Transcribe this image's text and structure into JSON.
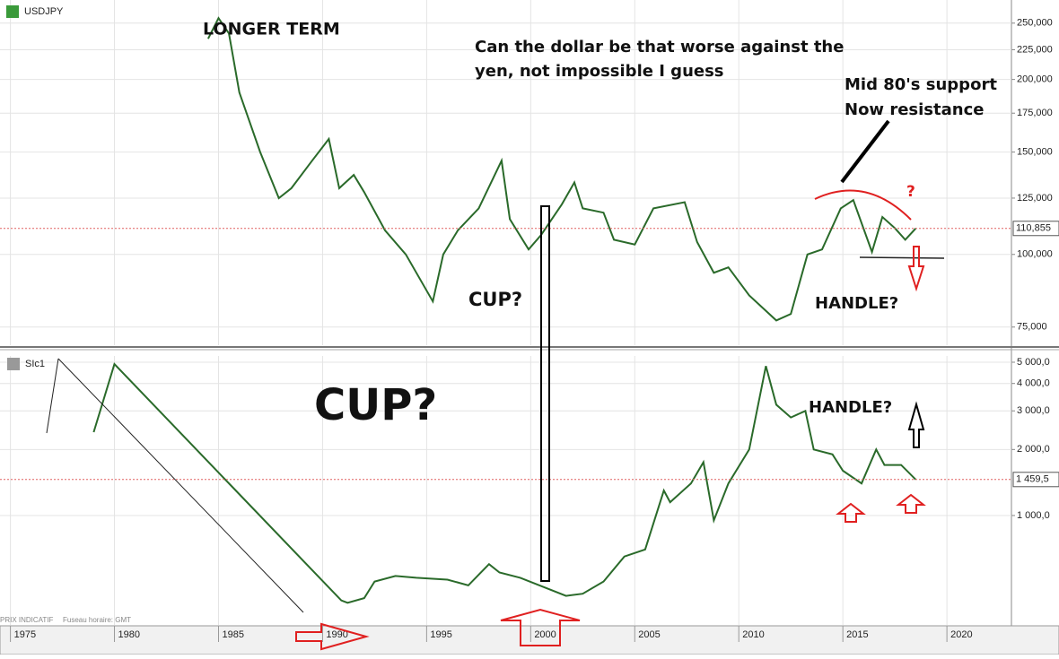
{
  "chart_data": [
    {
      "type": "line",
      "title": "USDJPY",
      "color": "#2a6a2a",
      "log_scale": true,
      "x": [
        1984.5,
        1985.0,
        1985.5,
        1986.0,
        1987.0,
        1987.9,
        1988.5,
        1989.5,
        1990.3,
        1990.8,
        1991.5,
        1992.0,
        1993.0,
        1994.0,
        1995.3,
        1995.8,
        1996.5,
        1997.5,
        1998.6,
        1999.0,
        1999.9,
        2000.5,
        2001.5,
        2002.1,
        2002.5,
        2003.5,
        2004.0,
        2005.0,
        2005.9,
        2007.4,
        2008.0,
        2008.8,
        2009.5,
        2010.5,
        2011.8,
        2012.5,
        2013.3,
        2014.0,
        2014.9,
        2015.5,
        2016.4,
        2016.9,
        2017.5,
        2018.0,
        2018.5
      ],
      "values": [
        235,
        255,
        240,
        190,
        150,
        125,
        130,
        145,
        158,
        130,
        137,
        128,
        110,
        100,
        83,
        100,
        110,
        120,
        145,
        115,
        102,
        108,
        122,
        133,
        120,
        118,
        106,
        104,
        120,
        123,
        105,
        93,
        95,
        85,
        77,
        79,
        100,
        102,
        120,
        124,
        101,
        116,
        111,
        106,
        110.855
      ],
      "last_value_label": "110,855",
      "ylim": [
        69.8,
        274
      ],
      "yticks": [
        {
          "value": 75,
          "label": "75,000"
        },
        {
          "value": 100,
          "label": "100,000"
        },
        {
          "value": 125,
          "label": "125,000"
        },
        {
          "value": 150,
          "label": "150,000"
        },
        {
          "value": 175,
          "label": "175,000"
        },
        {
          "value": 200,
          "label": "200,000"
        },
        {
          "value": 225,
          "label": "225,000"
        },
        {
          "value": 250,
          "label": "250,000"
        }
      ],
      "annotations": [
        "LONGER TERM",
        "Can the dollar be that worse against the",
        "yen, not impossible I guess",
        "Mid 80's support",
        "Now resistance",
        "?",
        "CUP?",
        "HANDLE?"
      ]
    },
    {
      "type": "line",
      "title": "SIc1",
      "color": "#2a6a2a",
      "log_scale": true,
      "x": [
        1979.0,
        1980.0,
        1990.9,
        1991.2,
        1992.0,
        1992.5,
        1993.5,
        1994.5,
        1996.0,
        1997.0,
        1998.0,
        1998.5,
        1999.5,
        2001.7,
        2002.5,
        2003.5,
        2004.5,
        2005.5,
        2006.4,
        2006.7,
        2007.7,
        2008.3,
        2008.8,
        2009.5,
        2010.5,
        2011.3,
        2011.8,
        2012.5,
        2013.2,
        2013.6,
        2014.5,
        2015.0,
        2015.9,
        2016.6,
        2017.0,
        2017.8,
        2018.5
      ],
      "values": [
        2400,
        4900,
        410,
        400,
        420,
        500,
        530,
        520,
        510,
        480,
        600,
        550,
        520,
        430,
        440,
        500,
        650,
        700,
        1300,
        1150,
        1400,
        1750,
        950,
        1400,
        2000,
        4800,
        3200,
        2800,
        3000,
        2000,
        1900,
        1600,
        1400,
        2000,
        1700,
        1700,
        1459.5
      ],
      "last_value_label": "1 459,5",
      "ylim": [
        317,
        5340
      ],
      "yticks": [
        {
          "value": 1000,
          "label": "1 000,0"
        },
        {
          "value": 2000,
          "label": "2 000,0"
        },
        {
          "value": 3000,
          "label": "3 000,0"
        },
        {
          "value": 4000,
          "label": "4 000,0"
        },
        {
          "value": 5000,
          "label": "5 000,0"
        }
      ],
      "xlim": [
        1974.5,
        2023.1
      ],
      "xticks": [
        1975,
        1980,
        1985,
        1990,
        1995,
        2000,
        2005,
        2010,
        2015,
        2020
      ],
      "footer": [
        "PRIX INDICATIF",
        "Fuseau horaire: GMT"
      ],
      "annotations": [
        "CUP?",
        "HANDLE?"
      ]
    }
  ]
}
